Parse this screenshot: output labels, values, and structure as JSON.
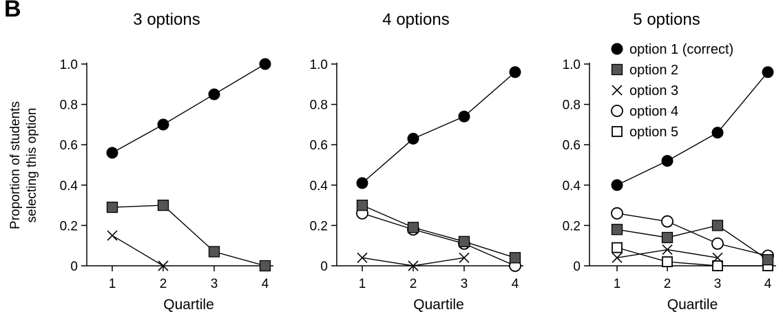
{
  "panel_label": "B",
  "shared": {
    "ylabel_line1": "Proportion of students",
    "ylabel_line2": "selecting this option",
    "yticks": [
      "0",
      "0.2",
      "0.4",
      "0.6",
      "0.8",
      "1.0"
    ]
  },
  "legend": [
    {
      "label": "option 1 (correct)",
      "marker": "filled-circle"
    },
    {
      "label": "option 2",
      "marker": "gray-square"
    },
    {
      "label": "option 3",
      "marker": "x"
    },
    {
      "label": "option 4",
      "marker": "open-circle"
    },
    {
      "label": "option 5",
      "marker": "open-square"
    }
  ],
  "colors": {
    "ink": "#000000",
    "gray_fill": "#555555"
  },
  "chart_data": [
    {
      "type": "line",
      "title": "3 options",
      "xlabel": "Quartile",
      "categories": [
        "1",
        "2",
        "3",
        "4"
      ],
      "ylim": [
        0,
        1.0
      ],
      "series": [
        {
          "name": "option 1 (correct)",
          "marker": "filled-circle",
          "values": [
            0.56,
            0.7,
            0.85,
            1.0
          ]
        },
        {
          "name": "option 2",
          "marker": "gray-square",
          "values": [
            0.29,
            0.3,
            0.07,
            0.0
          ]
        },
        {
          "name": "option 3",
          "marker": "x",
          "values": [
            0.15,
            0.0,
            null,
            null
          ]
        }
      ]
    },
    {
      "type": "line",
      "title": "4 options",
      "xlabel": "Quartile",
      "categories": [
        "1",
        "2",
        "3",
        "4"
      ],
      "ylim": [
        0,
        1.0
      ],
      "series": [
        {
          "name": "option 1 (correct)",
          "marker": "filled-circle",
          "values": [
            0.41,
            0.63,
            0.74,
            0.96
          ]
        },
        {
          "name": "option 2",
          "marker": "gray-square",
          "values": [
            0.3,
            0.19,
            0.12,
            0.04
          ]
        },
        {
          "name": "option 3",
          "marker": "x",
          "values": [
            0.04,
            0.0,
            0.04,
            null
          ]
        },
        {
          "name": "option 4",
          "marker": "open-circle",
          "values": [
            0.26,
            0.18,
            0.11,
            0.0
          ]
        }
      ]
    },
    {
      "type": "line",
      "title": "5 options",
      "xlabel": "Quartile",
      "categories": [
        "1",
        "2",
        "3",
        "4"
      ],
      "ylim": [
        0,
        1.0
      ],
      "series": [
        {
          "name": "option 1 (correct)",
          "marker": "filled-circle",
          "values": [
            0.4,
            0.52,
            0.66,
            0.96
          ]
        },
        {
          "name": "option 2",
          "marker": "gray-square",
          "values": [
            0.18,
            0.14,
            0.2,
            0.03
          ]
        },
        {
          "name": "option 3",
          "marker": "x",
          "values": [
            0.04,
            0.08,
            0.04,
            null
          ]
        },
        {
          "name": "option 4",
          "marker": "open-circle",
          "values": [
            0.26,
            0.22,
            0.11,
            0.05
          ]
        },
        {
          "name": "option 5",
          "marker": "open-square",
          "values": [
            0.09,
            0.02,
            0.0,
            0.0
          ]
        }
      ]
    }
  ]
}
